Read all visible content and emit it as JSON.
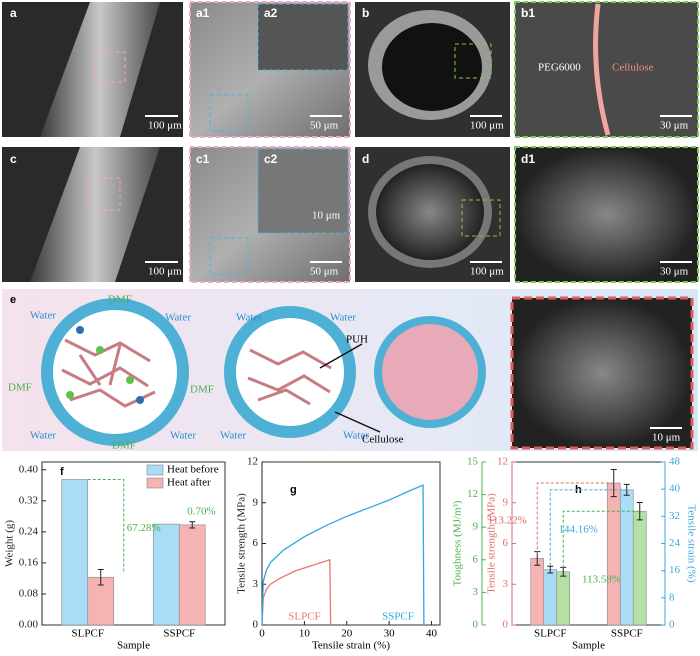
{
  "sem": {
    "a": "a",
    "a_scale": "100 μm",
    "a1": "a1",
    "a2": "a2",
    "a1_scale": "50 μm",
    "b": "b",
    "b_scale": "100 μm",
    "b1": "b1",
    "b1_scale": "30 μm",
    "peg": "PEG6000",
    "cellulose": "Cellulose",
    "c": "c",
    "c_scale": "100 μm",
    "c1": "c1",
    "c2": "c2",
    "c1_scale": "50 μm",
    "c2_scale": "10 μm",
    "d": "d",
    "d_scale": "100 μm",
    "d1": "d1",
    "d1_scale": "30 μm"
  },
  "scheme": {
    "label": "e",
    "water": "Water",
    "dmf": "DMF",
    "puh": "PUH",
    "cellulose": "Cellulose",
    "scale": "10 μm"
  },
  "chart_data": [
    {
      "type": "bar",
      "panel": "f",
      "ylabel": "Weight (g)",
      "xlabel": "Sample",
      "categories": [
        "SLPCF",
        "SSPCF"
      ],
      "series": [
        {
          "name": "Heat before",
          "color": "#a9dcf5",
          "values": [
            0.375,
            0.26
          ]
        },
        {
          "name": "Heat after",
          "color": "#f6b3b3",
          "values": [
            0.123,
            0.258
          ],
          "errors": [
            0.02,
            0.008
          ]
        }
      ],
      "ylim": [
        0,
        0.42
      ],
      "yticks": [
        {
          "value": 0,
          "label": "0.00"
        },
        {
          "value": 0.08,
          "label": "0.08"
        },
        {
          "value": 0.16,
          "label": "0.16"
        },
        {
          "value": 0.24,
          "label": "0.24"
        },
        {
          "value": 0.32,
          "label": "0.32"
        },
        {
          "value": 0.4,
          "label": "0.40"
        }
      ],
      "annotations": [
        "67.28%",
        "0.70%"
      ],
      "legend": "upper right"
    },
    {
      "type": "line",
      "panel": "g",
      "ylabel": "Tensile strength (MPa)",
      "xlabel": "Tensile strain (%)",
      "series": [
        {
          "name": "SLPCF",
          "color": "#e8796f",
          "x": [
            0,
            0.3,
            1,
            2,
            4,
            6,
            8,
            10,
            12,
            14,
            16,
            16.2
          ],
          "values": [
            0,
            2.0,
            2.6,
            3.0,
            3.4,
            3.7,
            4.0,
            4.2,
            4.4,
            4.6,
            4.8,
            0
          ]
        },
        {
          "name": "SSPCF",
          "color": "#2ea8e0",
          "x": [
            0,
            0.3,
            1,
            2,
            5,
            10,
            15,
            20,
            25,
            30,
            35,
            38,
            38.2
          ],
          "values": [
            0,
            3.2,
            4.0,
            4.6,
            5.5,
            6.5,
            7.3,
            8.0,
            8.6,
            9.2,
            9.9,
            10.3,
            0
          ]
        }
      ],
      "xlim": [
        0,
        42
      ],
      "xticks": [
        0,
        10,
        20,
        30,
        40
      ],
      "ylim": [
        0,
        12
      ],
      "yticks": [
        0,
        3,
        6,
        9,
        12
      ]
    },
    {
      "type": "bar",
      "panel": "h",
      "xlabel": "Sample",
      "ylabel": "Tensile strength (MPa)",
      "y2label": "Tensile strain (%)",
      "y3label": "Toughness (MJ/m³)",
      "categories": [
        "SLPCF",
        "SSPCF"
      ],
      "series": [
        {
          "color": "#f6b3b3",
          "values": [
            4.9,
            10.45
          ],
          "errors": [
            0.5,
            1.0
          ]
        },
        {
          "color": "#a9dcf5",
          "axis": "y2",
          "values": [
            16.3,
            39.8
          ],
          "errors": [
            1.0,
            1.6
          ]
        },
        {
          "color": "#b5e0a5",
          "axis": "y3",
          "values": [
            4.9,
            10.47
          ],
          "errors": [
            0.4,
            0.8
          ]
        }
      ],
      "ylim": [
        0,
        12
      ],
      "yticks": [
        0,
        3,
        6,
        9,
        12
      ],
      "y2lim": [
        0,
        48
      ],
      "y2ticks": [
        0,
        8,
        16,
        24,
        32,
        40,
        48
      ],
      "y3lim": [
        0,
        15
      ],
      "y3ticks": [
        0,
        3,
        6,
        9,
        12,
        15
      ],
      "axis_colors": {
        "y": "#e06a6a",
        "y2": "#3aa8dc",
        "y3": "#4cb050"
      },
      "annotations": [
        "113.22%",
        "144.16%",
        "113.58%"
      ]
    }
  ]
}
